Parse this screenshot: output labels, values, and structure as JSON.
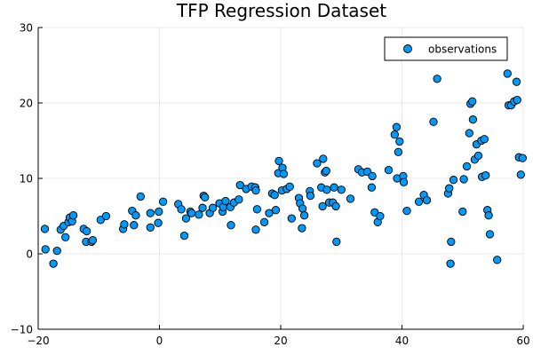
{
  "chart_data": {
    "type": "scatter",
    "title": "TFP Regression Dataset",
    "xlabel": "",
    "ylabel": "",
    "xlim": [
      -20,
      60
    ],
    "ylim": [
      -10,
      30
    ],
    "xticks": [
      -20,
      0,
      20,
      40,
      60
    ],
    "yticks": [
      -10,
      0,
      10,
      20,
      30
    ],
    "grid": true,
    "legend_position": "top-right",
    "colors": {
      "marker": "#009AFA",
      "marker_edge": "#000000"
    },
    "series": [
      {
        "name": "observations",
        "points": [
          [
            -18.9,
            3.3
          ],
          [
            -18.8,
            0.6
          ],
          [
            -17.5,
            -1.3
          ],
          [
            -16.9,
            0.4
          ],
          [
            -16.3,
            3.2
          ],
          [
            -15.8,
            3.7
          ],
          [
            -15.5,
            2.2
          ],
          [
            -15.0,
            4.2
          ],
          [
            -14.8,
            4.8
          ],
          [
            -14.4,
            4.3
          ],
          [
            -14.2,
            5.1
          ],
          [
            -12.5,
            3.3
          ],
          [
            -12.1,
            1.6
          ],
          [
            -12.0,
            3.0
          ],
          [
            -11.2,
            1.6
          ],
          [
            -11.0,
            1.8
          ],
          [
            -9.7,
            4.5
          ],
          [
            -8.8,
            5.0
          ],
          [
            -6.0,
            3.3
          ],
          [
            -5.8,
            3.9
          ],
          [
            -4.5,
            5.7
          ],
          [
            -4.2,
            3.8
          ],
          [
            -3.9,
            5.1
          ],
          [
            -3.1,
            7.6
          ],
          [
            -1.5,
            3.5
          ],
          [
            -1.5,
            5.4
          ],
          [
            -0.2,
            4.1
          ],
          [
            -0.1,
            5.6
          ],
          [
            0.6,
            6.9
          ],
          [
            3.1,
            6.6
          ],
          [
            3.6,
            5.9
          ],
          [
            4.1,
            2.4
          ],
          [
            4.4,
            4.7
          ],
          [
            5.1,
            5.6
          ],
          [
            5.3,
            5.4
          ],
          [
            6.5,
            5.2
          ],
          [
            7.1,
            6.1
          ],
          [
            7.3,
            7.7
          ],
          [
            7.5,
            7.5
          ],
          [
            8.3,
            5.4
          ],
          [
            8.8,
            6.1
          ],
          [
            9.9,
            6.7
          ],
          [
            10.4,
            5.6
          ],
          [
            10.5,
            6.2
          ],
          [
            10.9,
            7.0
          ],
          [
            11.7,
            6.2
          ],
          [
            11.8,
            3.8
          ],
          [
            12.3,
            6.8
          ],
          [
            13.1,
            7.2
          ],
          [
            13.3,
            9.1
          ],
          [
            14.3,
            8.6
          ],
          [
            15.2,
            8.9
          ],
          [
            15.8,
            8.8
          ],
          [
            15.9,
            8.4
          ],
          [
            15.9,
            3.2
          ],
          [
            16.1,
            5.9
          ],
          [
            17.3,
            4.2
          ],
          [
            18.1,
            5.4
          ],
          [
            18.6,
            8.0
          ],
          [
            19.0,
            7.8
          ],
          [
            19.2,
            5.8
          ],
          [
            19.6,
            10.7
          ],
          [
            19.7,
            12.3
          ],
          [
            20.2,
            8.4
          ],
          [
            20.3,
            11.4
          ],
          [
            20.5,
            10.6
          ],
          [
            21.0,
            8.6
          ],
          [
            21.5,
            8.9
          ],
          [
            21.8,
            4.7
          ],
          [
            23.0,
            7.4
          ],
          [
            23.2,
            6.7
          ],
          [
            23.5,
            3.4
          ],
          [
            23.6,
            6.0
          ],
          [
            23.9,
            5.1
          ],
          [
            24.8,
            8.3
          ],
          [
            24.9,
            7.7
          ],
          [
            26.0,
            12.0
          ],
          [
            26.7,
            8.8
          ],
          [
            26.9,
            6.3
          ],
          [
            27.0,
            12.6
          ],
          [
            27.3,
            10.8
          ],
          [
            27.5,
            11.0
          ],
          [
            27.6,
            8.5
          ],
          [
            28.0,
            6.8
          ],
          [
            28.6,
            6.8
          ],
          [
            28.8,
            8.8
          ],
          [
            29.1,
            6.3
          ],
          [
            29.2,
            1.6
          ],
          [
            30.0,
            8.5
          ],
          [
            31.5,
            7.3
          ],
          [
            32.8,
            11.2
          ],
          [
            33.4,
            10.8
          ],
          [
            34.3,
            10.9
          ],
          [
            35.0,
            8.8
          ],
          [
            35.1,
            10.3
          ],
          [
            35.5,
            5.5
          ],
          [
            36.0,
            4.2
          ],
          [
            36.4,
            5.0
          ],
          [
            37.8,
            11.1
          ],
          [
            38.8,
            15.8
          ],
          [
            39.1,
            16.8
          ],
          [
            39.2,
            10.0
          ],
          [
            39.4,
            13.5
          ],
          [
            39.6,
            14.9
          ],
          [
            40.2,
            10.3
          ],
          [
            40.3,
            9.5
          ],
          [
            40.8,
            5.7
          ],
          [
            42.8,
            6.9
          ],
          [
            43.6,
            7.8
          ],
          [
            44.1,
            7.1
          ],
          [
            45.2,
            17.5
          ],
          [
            45.8,
            23.2
          ],
          [
            47.6,
            8.0
          ],
          [
            47.8,
            8.7
          ],
          [
            48.0,
            -1.3
          ],
          [
            48.1,
            1.6
          ],
          [
            48.5,
            9.8
          ],
          [
            50.0,
            5.6
          ],
          [
            50.2,
            9.9
          ],
          [
            50.7,
            11.6
          ],
          [
            51.1,
            16.0
          ],
          [
            51.3,
            19.9
          ],
          [
            51.6,
            20.2
          ],
          [
            51.7,
            17.8
          ],
          [
            52.0,
            12.5
          ],
          [
            52.3,
            14.5
          ],
          [
            52.6,
            13.0
          ],
          [
            53.1,
            15.0
          ],
          [
            53.2,
            10.2
          ],
          [
            53.6,
            15.2
          ],
          [
            53.8,
            10.4
          ],
          [
            54.1,
            5.8
          ],
          [
            54.3,
            5.1
          ],
          [
            54.5,
            2.6
          ],
          [
            55.7,
            -0.8
          ],
          [
            57.4,
            23.9
          ],
          [
            57.6,
            19.7
          ],
          [
            58.0,
            19.7
          ],
          [
            58.5,
            20.2
          ],
          [
            58.9,
            22.8
          ],
          [
            59.0,
            20.4
          ],
          [
            59.3,
            12.8
          ],
          [
            59.6,
            10.5
          ],
          [
            59.9,
            12.7
          ]
        ]
      }
    ]
  }
}
